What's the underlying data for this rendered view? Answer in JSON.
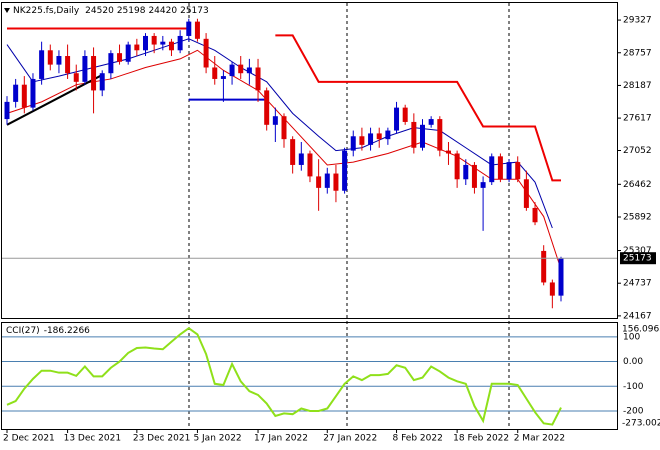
{
  "chart_data": [
    {
      "type": "candlestick",
      "title": "NK225.fs,Daily",
      "categories": [
        "2 Dec 2021",
        null,
        null,
        null,
        null,
        null,
        null,
        "13 Dec 2021",
        null,
        null,
        null,
        null,
        null,
        null,
        null,
        "23 Dec 2021",
        null,
        null,
        null,
        null,
        null,
        null,
        "5 Jan 2022",
        null,
        null,
        null,
        null,
        null,
        null,
        "17 Jan 2022",
        null,
        null,
        null,
        null,
        null,
        null,
        null,
        "27 Jan 2022",
        null,
        null,
        null,
        null,
        null,
        null,
        null,
        "8 Feb 2022",
        null,
        null,
        null,
        null,
        null,
        null,
        "18 Feb 2022",
        null,
        null,
        null,
        null,
        null,
        null,
        "2 Mar 2022",
        null,
        null,
        null,
        null,
        null
      ],
      "ohlc": [
        [
          27600,
          28000,
          27500,
          27900
        ],
        [
          27900,
          28300,
          27800,
          28200
        ],
        [
          28200,
          28350,
          27700,
          27800
        ],
        [
          27800,
          28400,
          27750,
          28300
        ],
        [
          28300,
          28950,
          28200,
          28800
        ],
        [
          28800,
          28900,
          28450,
          28550
        ],
        [
          28550,
          28800,
          28400,
          28700
        ],
        [
          28700,
          28900,
          28300,
          28400
        ],
        [
          28400,
          28550,
          28100,
          28250
        ],
        [
          28250,
          28800,
          28200,
          28700
        ],
        [
          28700,
          28850,
          27700,
          28100
        ],
        [
          28100,
          28450,
          28000,
          28400
        ],
        [
          28400,
          28800,
          28300,
          28750
        ],
        [
          28750,
          28900,
          28550,
          28600
        ],
        [
          28600,
          28950,
          28550,
          28900
        ],
        [
          28900,
          29000,
          28700,
          28800
        ],
        [
          28800,
          29100,
          28700,
          29050
        ],
        [
          29050,
          29100,
          28750,
          28900
        ],
        [
          28900,
          29050,
          28800,
          28950
        ],
        [
          28950,
          29000,
          28700,
          28800
        ],
        [
          28800,
          29150,
          28750,
          29050
        ],
        [
          29050,
          29350,
          28950,
          29300
        ],
        [
          29300,
          29350,
          28950,
          29000
        ],
        [
          29000,
          29100,
          28400,
          28500
        ],
        [
          28500,
          28700,
          28200,
          28300
        ],
        [
          28300,
          28450,
          27900,
          28350
        ],
        [
          28350,
          28600,
          28200,
          28550
        ],
        [
          28550,
          28700,
          28300,
          28400
        ],
        [
          28400,
          28650,
          28200,
          28500
        ],
        [
          28500,
          28650,
          27900,
          28100
        ],
        [
          28100,
          28150,
          27400,
          27500
        ],
        [
          27500,
          27800,
          27200,
          27650
        ],
        [
          27650,
          27700,
          27100,
          27250
        ],
        [
          27250,
          27300,
          26650,
          26800
        ],
        [
          26800,
          27200,
          26700,
          27000
        ],
        [
          27000,
          27050,
          26500,
          26600
        ],
        [
          26600,
          26900,
          26000,
          26400
        ],
        [
          26400,
          26750,
          26300,
          26650
        ],
        [
          26650,
          26800,
          26150,
          26350
        ],
        [
          26350,
          27100,
          26300,
          27050
        ],
        [
          27050,
          27400,
          26950,
          27300
        ],
        [
          27300,
          27450,
          27050,
          27150
        ],
        [
          27150,
          27450,
          27050,
          27350
        ],
        [
          27350,
          27450,
          27100,
          27250
        ],
        [
          27250,
          27450,
          27150,
          27400
        ],
        [
          27400,
          27900,
          27350,
          27800
        ],
        [
          27800,
          27850,
          27500,
          27550
        ],
        [
          27550,
          27700,
          27000,
          27100
        ],
        [
          27100,
          27600,
          27050,
          27500
        ],
        [
          27500,
          27650,
          27450,
          27600
        ],
        [
          27600,
          27650,
          26950,
          27050
        ],
        [
          27050,
          27200,
          26800,
          27000
        ],
        [
          27000,
          27050,
          26400,
          26550
        ],
        [
          26550,
          26900,
          26450,
          26800
        ],
        [
          26800,
          26850,
          26300,
          26400
        ],
        [
          26400,
          26600,
          25650,
          26500
        ],
        [
          26500,
          27000,
          26450,
          26950
        ],
        [
          26950,
          27000,
          26500,
          26550
        ],
        [
          26550,
          26900,
          26500,
          26850
        ],
        [
          26850,
          26950,
          26500,
          26550
        ],
        [
          26550,
          26700,
          26000,
          26050
        ],
        [
          26050,
          26150,
          25750,
          25800
        ],
        [
          25300,
          25400,
          24700,
          24750
        ],
        [
          24750,
          24800,
          24300,
          24520
        ],
        [
          24520,
          25198,
          24420,
          25173
        ]
      ],
      "up_color": "#0000cc",
      "down_color": "#dd0000",
      "ylim": [
        24130,
        29590
      ],
      "yticks": [
        29327,
        28757,
        28187,
        27617,
        27052,
        26462,
        25892,
        25307,
        24737,
        24167
      ],
      "lines": [
        {
          "color": "#0000aa",
          "x": [
            0,
            3,
            6,
            10,
            14,
            18,
            21,
            24,
            27,
            30,
            33,
            36,
            38,
            41,
            44,
            47,
            50,
            53,
            56,
            59,
            61,
            63
          ],
          "values": [
            28900,
            28250,
            28350,
            28500,
            28650,
            28850,
            29000,
            28800,
            28500,
            28250,
            27700,
            27300,
            27050,
            27100,
            27300,
            27450,
            27400,
            27100,
            26800,
            26850,
            26500,
            25700
          ]
        },
        {
          "color": "#dd0000",
          "x": [
            0,
            4,
            8,
            12,
            16,
            20,
            22,
            25,
            29,
            33,
            37,
            40,
            44,
            48,
            52,
            56,
            59,
            62,
            64
          ],
          "values": [
            27700,
            27900,
            28200,
            28300,
            28500,
            28650,
            28800,
            28450,
            28100,
            27450,
            26800,
            26850,
            27000,
            27200,
            26950,
            26550,
            26550,
            25900,
            24980
          ]
        },
        {
          "color": "#ee0000",
          "x": [
            0,
            21,
            25,
            31,
            33,
            36,
            52,
            55,
            61,
            63,
            64
          ],
          "values": [
            29180,
            29180,
            null,
            29060,
            29060,
            28250,
            28250,
            27470,
            27470,
            26530,
            26530
          ]
        },
        {
          "color": "#000000",
          "x": [
            0,
            11
          ],
          "values": [
            27500,
            28370
          ]
        },
        {
          "color": "#0000cc",
          "x": [
            21,
            30
          ],
          "values": [
            27940,
            27940
          ]
        }
      ]
    },
    {
      "type": "line",
      "title": "CCI(27)",
      "values": [
        -175,
        -160,
        -110,
        -70,
        -37,
        -37,
        -45,
        -45,
        -58,
        -20,
        -60,
        -60,
        -25,
        0,
        35,
        55,
        57,
        53,
        50,
        80,
        110,
        135,
        110,
        30,
        -90,
        -95,
        -10,
        -80,
        -120,
        -135,
        -170,
        -220,
        -210,
        -213,
        -190,
        -200,
        -200,
        -190,
        -140,
        -90,
        -60,
        -75,
        -55,
        -55,
        -50,
        -15,
        -25,
        -75,
        -65,
        -20,
        -40,
        -65,
        -80,
        -90,
        -180,
        -240,
        -90,
        -90,
        -90,
        -95,
        -150,
        -205,
        -250,
        -255,
        -186.2266
      ],
      "color": "#8fe01a",
      "ylim": [
        -273.0024,
        156.0965
      ],
      "yticks": [
        100,
        {
          "value": 0,
          "label": "0.00"
        },
        -100,
        -200
      ],
      "grid_color": "#4a7fb0"
    }
  ]
}
